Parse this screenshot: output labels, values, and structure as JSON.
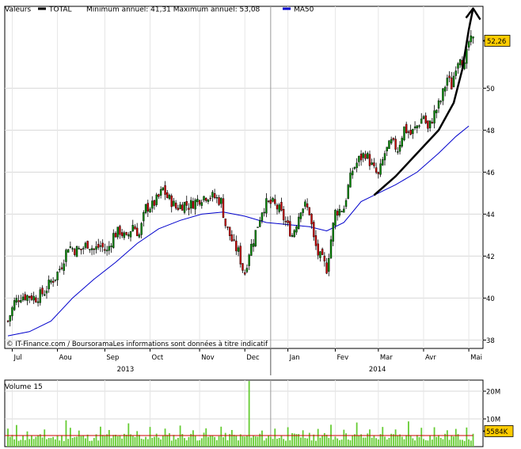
{
  "chart_data": [
    {
      "type": "candlestick",
      "legend": {
        "label": "Valeurs",
        "series": "TOTAL",
        "stats": "Minimum annuel: 41,31 Maximum annuel: 53,08",
        "ma_label": "MA50",
        "ma_color": "#0000cc",
        "series_color": "#000000"
      },
      "credit": "© IT-Finance.com / BoursoramaLes informations sont données à titre indicatif",
      "y_ticks": [
        38,
        40,
        42,
        44,
        46,
        48,
        50
      ],
      "ylim": [
        37.6,
        53.9
      ],
      "last_value": 52.26,
      "last_value_label": "52,26",
      "last_value_color": "#ffcc00",
      "months": [
        {
          "label": "Jul",
          "t": 2
        },
        {
          "label": "Aou",
          "t": 23
        },
        {
          "label": "Sep",
          "t": 45
        },
        {
          "label": "Oct",
          "t": 66
        },
        {
          "label": "Nov",
          "t": 89
        },
        {
          "label": "Dec",
          "t": 110
        },
        {
          "label": "Jan",
          "t": 130
        },
        {
          "label": "Fev",
          "t": 152
        },
        {
          "label": "Mar",
          "t": 172
        },
        {
          "label": "Avr",
          "t": 193
        },
        {
          "label": "Mai",
          "t": 214
        }
      ],
      "years": [
        {
          "label": "2013",
          "t": 55
        },
        {
          "label": "2014",
          "t": 172
        }
      ],
      "year_separator_t": 122,
      "bull_color": "#008800",
      "bear_color": "#cc0000",
      "close_path": [
        [
          0,
          38.9
        ],
        [
          3,
          39.8
        ],
        [
          6,
          40.1
        ],
        [
          10,
          40.1
        ],
        [
          13,
          40.0
        ],
        [
          17,
          40.3
        ],
        [
          20,
          40.8
        ],
        [
          22,
          41.0
        ],
        [
          25,
          41.6
        ],
        [
          28,
          42.5
        ],
        [
          31,
          42.3
        ],
        [
          34,
          42.3
        ],
        [
          37,
          42.6
        ],
        [
          40,
          42.3
        ],
        [
          43,
          42.5
        ],
        [
          46,
          42.2
        ],
        [
          49,
          43.0
        ],
        [
          52,
          43.2
        ],
        [
          55,
          42.8
        ],
        [
          58,
          43.5
        ],
        [
          61,
          43.0
        ],
        [
          64,
          44.3
        ],
        [
          67,
          44.4
        ],
        [
          70,
          44.8
        ],
        [
          72,
          45.2
        ],
        [
          74,
          44.8
        ],
        [
          76,
          44.6
        ],
        [
          78,
          44.3
        ],
        [
          80,
          44.4
        ],
        [
          82,
          44.5
        ],
        [
          84,
          44.4
        ],
        [
          87,
          44.6
        ],
        [
          90,
          44.8
        ],
        [
          93,
          44.9
        ],
        [
          96,
          44.8
        ],
        [
          99,
          44.6
        ],
        [
          101,
          43.5
        ],
        [
          103,
          43.0
        ],
        [
          105,
          42.5
        ],
        [
          107,
          42.2
        ],
        [
          109,
          41.4
        ],
        [
          110,
          41.2
        ],
        [
          112,
          42.2
        ],
        [
          114,
          42.8
        ],
        [
          116,
          43.5
        ],
        [
          118,
          44.2
        ],
        [
          120,
          44.5
        ],
        [
          123,
          44.5
        ],
        [
          126,
          44.2
        ],
        [
          128,
          43.8
        ],
        [
          130,
          43.4
        ],
        [
          132,
          43.0
        ],
        [
          134,
          43.6
        ],
        [
          136,
          44.3
        ],
        [
          138,
          44.4
        ],
        [
          140,
          44.1
        ],
        [
          142,
          42.8
        ],
        [
          144,
          42.1
        ],
        [
          146,
          41.8
        ],
        [
          148,
          41.4
        ],
        [
          150,
          42.8
        ],
        [
          152,
          44.1
        ],
        [
          154,
          44.2
        ],
        [
          156,
          44.3
        ],
        [
          158,
          45.3
        ],
        [
          160,
          46.1
        ],
        [
          163,
          46.6
        ],
        [
          166,
          46.9
        ],
        [
          168,
          46.5
        ],
        [
          170,
          46.1
        ],
        [
          172,
          45.8
        ],
        [
          175,
          46.9
        ],
        [
          178,
          47.4
        ],
        [
          181,
          47.1
        ],
        [
          184,
          48.1
        ],
        [
          187,
          47.8
        ],
        [
          190,
          48.2
        ],
        [
          193,
          48.7
        ],
        [
          195,
          48.0
        ],
        [
          198,
          48.8
        ],
        [
          201,
          49.4
        ],
        [
          204,
          50.5
        ],
        [
          206,
          50.1
        ],
        [
          208,
          51.1
        ],
        [
          210,
          51.6
        ],
        [
          212,
          51.0
        ],
        [
          214,
          52.2
        ],
        [
          216,
          52.26
        ]
      ],
      "ma50_path": [
        [
          0,
          38.2
        ],
        [
          10,
          38.4
        ],
        [
          20,
          38.9
        ],
        [
          30,
          40.0
        ],
        [
          40,
          40.9
        ],
        [
          50,
          41.7
        ],
        [
          60,
          42.6
        ],
        [
          70,
          43.3
        ],
        [
          80,
          43.7
        ],
        [
          90,
          44.0
        ],
        [
          100,
          44.1
        ],
        [
          110,
          43.9
        ],
        [
          120,
          43.6
        ],
        [
          130,
          43.5
        ],
        [
          140,
          43.4
        ],
        [
          148,
          43.2
        ],
        [
          156,
          43.6
        ],
        [
          164,
          44.6
        ],
        [
          172,
          45.0
        ],
        [
          180,
          45.4
        ],
        [
          190,
          46.0
        ],
        [
          200,
          46.9
        ],
        [
          208,
          47.7
        ],
        [
          214,
          48.2
        ]
      ],
      "annotation_arrow": [
        [
          170,
          44.9
        ],
        [
          180,
          45.8
        ],
        [
          190,
          46.9
        ],
        [
          200,
          48.0
        ],
        [
          207,
          49.3
        ],
        [
          211,
          50.9
        ],
        [
          214,
          52.8
        ],
        [
          216,
          53.8
        ]
      ]
    },
    {
      "type": "bar",
      "title": "Volume 15",
      "y_ticks": [
        {
          "value": 10,
          "label": "10M"
        },
        {
          "value": 20,
          "label": "20M"
        }
      ],
      "ylim": [
        0,
        24
      ],
      "last_value": 5.584,
      "last_value_label": "5584K",
      "last_value_color": "#ffcc00",
      "bar_color": "#66cc33",
      "avg_color": "#cc0000",
      "avg_level": 4.0,
      "base_levels": [
        [
          0,
          3.3
        ],
        [
          30,
          3.5
        ],
        [
          60,
          3.7
        ],
        [
          90,
          3.8
        ],
        [
          110,
          3.6
        ],
        [
          120,
          3.6
        ],
        [
          150,
          3.8
        ],
        [
          180,
          3.7
        ],
        [
          216,
          3.5
        ]
      ],
      "spikes": [
        [
          0,
          6.5
        ],
        [
          4,
          7.8
        ],
        [
          9,
          5.5
        ],
        [
          17,
          6.2
        ],
        [
          27,
          9.5
        ],
        [
          29,
          6.8
        ],
        [
          33,
          5.8
        ],
        [
          43,
          7.2
        ],
        [
          47,
          6.0
        ],
        [
          56,
          8.4
        ],
        [
          60,
          5.6
        ],
        [
          66,
          7.1
        ],
        [
          73,
          6.5
        ],
        [
          80,
          7.6
        ],
        [
          86,
          5.9
        ],
        [
          92,
          6.6
        ],
        [
          99,
          7.2
        ],
        [
          104,
          6.0
        ],
        [
          112,
          23.7
        ],
        [
          118,
          5.8
        ],
        [
          124,
          6.5
        ],
        [
          130,
          7.0
        ],
        [
          137,
          5.9
        ],
        [
          144,
          6.4
        ],
        [
          150,
          7.9
        ],
        [
          156,
          6.1
        ],
        [
          162,
          8.7
        ],
        [
          168,
          6.2
        ],
        [
          174,
          7.1
        ],
        [
          180,
          6.2
        ],
        [
          186,
          9.1
        ],
        [
          192,
          6.8
        ],
        [
          198,
          7.0
        ],
        [
          204,
          5.9
        ],
        [
          208,
          6.4
        ],
        [
          213,
          6.9
        ]
      ]
    }
  ]
}
